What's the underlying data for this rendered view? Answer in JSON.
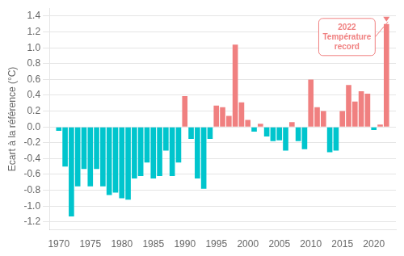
{
  "chart_data": {
    "type": "bar",
    "x": [
      1970,
      1971,
      1972,
      1973,
      1974,
      1975,
      1976,
      1977,
      1978,
      1979,
      1980,
      1981,
      1982,
      1983,
      1984,
      1985,
      1986,
      1987,
      1988,
      1989,
      1990,
      1991,
      1992,
      1993,
      1994,
      1995,
      1996,
      1997,
      1998,
      1999,
      2000,
      2001,
      2002,
      2003,
      2004,
      2005,
      2006,
      2007,
      2008,
      2009,
      2010,
      2011,
      2012,
      2013,
      2014,
      2015,
      2016,
      2017,
      2018,
      2019,
      2020,
      2021,
      2022
    ],
    "values": [
      -0.05,
      -0.5,
      -1.13,
      -0.75,
      -0.53,
      -0.75,
      -0.53,
      -0.75,
      -0.86,
      -0.83,
      -0.9,
      -0.92,
      -0.65,
      -0.62,
      -0.45,
      -0.65,
      -0.62,
      -0.3,
      -0.62,
      -0.45,
      0.39,
      -0.15,
      -0.65,
      -0.78,
      -0.15,
      0.27,
      0.25,
      0.14,
      1.04,
      0.31,
      0.09,
      -0.06,
      0.04,
      -0.12,
      -0.18,
      -0.17,
      -0.3,
      0.06,
      -0.18,
      -0.28,
      0.6,
      0.25,
      0.2,
      -0.32,
      -0.3,
      0.2,
      0.53,
      0.32,
      0.45,
      0.42,
      -0.04,
      0.03,
      1.3
    ],
    "colors": [
      "#00C5CD",
      "#00C5CD",
      "#00C5CD",
      "#00C5CD",
      "#00C5CD",
      "#00C5CD",
      "#00C5CD",
      "#00C5CD",
      "#00C5CD",
      "#00C5CD",
      "#00C5CD",
      "#00C5CD",
      "#00C5CD",
      "#00C5CD",
      "#00C5CD",
      "#00C5CD",
      "#00C5CD",
      "#00C5CD",
      "#00C5CD",
      "#00C5CD",
      "#F08080",
      "#00C5CD",
      "#00C5CD",
      "#00C5CD",
      "#00C5CD",
      "#F08080",
      "#F08080",
      "#F08080",
      "#F08080",
      "#F08080",
      "#F08080",
      "#00C5CD",
      "#F08080",
      "#00C5CD",
      "#00C5CD",
      "#00C5CD",
      "#00C5CD",
      "#F08080",
      "#00C5CD",
      "#00C5CD",
      "#F08080",
      "#F08080",
      "#F08080",
      "#00C5CD",
      "#00C5CD",
      "#F08080",
      "#F08080",
      "#F08080",
      "#F08080",
      "#F08080",
      "#00C5CD",
      "#F08080",
      "#F08080"
    ],
    "ylabel": "Ecart à la référence (°C)",
    "xlim": [
      1968.5,
      2023.5
    ],
    "xticks": [
      1970,
      1975,
      1980,
      1985,
      1990,
      1995,
      2000,
      2005,
      2010,
      2015,
      2020
    ],
    "ylim": [
      -1.3,
      1.5
    ],
    "yticks": [
      -1.2,
      {
        "value": -1.0,
        "label": "-1.0"
      },
      -0.8,
      -0.6,
      -0.4,
      -0.2,
      {
        "value": 0.0,
        "label": "0.0"
      },
      0.2,
      0.4,
      0.6,
      0.8,
      {
        "value": 1.0,
        "label": "1.0"
      },
      1.2,
      1.4
    ],
    "grid": true,
    "annotations": [
      {
        "text": "2022\nTempérature\nrecord",
        "x": 2022,
        "y": 1.3,
        "color": "#F08080"
      }
    ]
  }
}
